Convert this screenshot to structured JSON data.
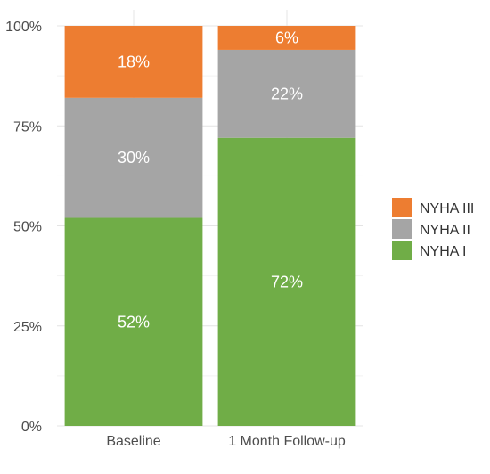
{
  "chart_data": {
    "type": "bar",
    "stacked": true,
    "percent": true,
    "categories": [
      "Baseline",
      "1 Month Follow-up"
    ],
    "series": [
      {
        "name": "NYHA I",
        "values": [
          52,
          72
        ],
        "labels": [
          "52%",
          "72%"
        ],
        "color": "#70ad47"
      },
      {
        "name": "NYHA II",
        "values": [
          30,
          22
        ],
        "labels": [
          "30%",
          "22%"
        ],
        "color": "#a5a5a5"
      },
      {
        "name": "NYHA III",
        "values": [
          18,
          6
        ],
        "labels": [
          "18%",
          "6%"
        ],
        "color": "#ed7d31"
      }
    ],
    "ylim": [
      0,
      100
    ],
    "yticks": [
      0,
      25,
      50,
      75,
      100
    ],
    "ytick_labels": [
      "0%",
      "25%",
      "50%",
      "75%",
      "100%"
    ],
    "legend_order": [
      "NYHA III",
      "NYHA II",
      "NYHA I"
    ],
    "legend_position": "right",
    "grid": true,
    "title": "",
    "xlabel": "",
    "ylabel": ""
  }
}
